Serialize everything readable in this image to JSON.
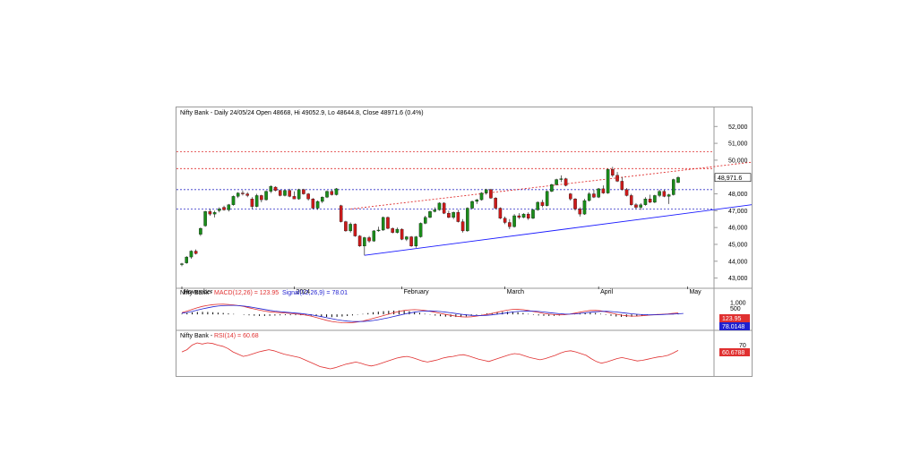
{
  "chart_data": [
    {
      "type": "candlestick",
      "title": "Nifty Bank - Daily 24/05/24 Open 48668, Hi 49052.9, Lo 48644.8, Close 48971.6 (0.4%)",
      "y_ticks": [
        "52,000",
        "51,000",
        "50,000",
        "49,000",
        "48,000",
        "47,000",
        "46,000",
        "45,000",
        "44,000",
        "43,000"
      ],
      "ylim": [
        42500,
        52600
      ],
      "last_price_label": "48,971.6",
      "last_price": 48971.6,
      "x_labels": [
        "November",
        "2024",
        "February",
        "March",
        "April",
        "May"
      ],
      "x_label_index": [
        0,
        24,
        47,
        69,
        89,
        108
      ],
      "horizontal_levels": [
        {
          "value": 50500,
          "color": "#e03030"
        },
        {
          "value": 49500,
          "color": "#e03030"
        },
        {
          "value": 48250,
          "color": "#3030c8"
        },
        {
          "value": 47100,
          "color": "#3030c8"
        }
      ],
      "trendlines": [
        {
          "from": [
            39,
            44350
          ],
          "to": [
            134,
            47800
          ],
          "color": "#1a1aff",
          "style": "solid"
        },
        {
          "from": [
            36,
            47100
          ],
          "to": [
            130,
            50150
          ],
          "color": "#e03030",
          "style": "dashed"
        }
      ],
      "up_color": "#1a8c1a",
      "down_color": "#cc1a1a",
      "candles": [
        [
          43800,
          43900,
          43700,
          43850
        ],
        [
          43900,
          44300,
          43850,
          44250
        ],
        [
          44250,
          44650,
          44150,
          44600
        ],
        [
          44600,
          44700,
          44400,
          44450
        ],
        [
          45600,
          46000,
          45500,
          45950
        ],
        [
          46100,
          47000,
          46050,
          46950
        ],
        [
          46950,
          47100,
          46700,
          46800
        ],
        [
          46800,
          47000,
          46600,
          46900
        ],
        [
          47000,
          47200,
          46900,
          47100
        ],
        [
          47200,
          47300,
          47000,
          47050
        ],
        [
          47050,
          47400,
          46950,
          47350
        ],
        [
          47350,
          47900,
          47300,
          47850
        ],
        [
          47850,
          48100,
          47750,
          48050
        ],
        [
          48050,
          48200,
          47900,
          48000
        ],
        [
          48000,
          48100,
          47800,
          47900
        ],
        [
          47700,
          47800,
          47100,
          47250
        ],
        [
          47250,
          48000,
          47200,
          47900
        ],
        [
          47900,
          47950,
          47500,
          47650
        ],
        [
          47650,
          48200,
          47600,
          48150
        ],
        [
          48150,
          48500,
          48050,
          48450
        ],
        [
          48400,
          48450,
          48150,
          48200
        ],
        [
          48200,
          48250,
          47850,
          47900
        ],
        [
          47900,
          48250,
          47850,
          48200
        ],
        [
          48200,
          48300,
          47800,
          47850
        ],
        [
          47850,
          48150,
          47700,
          47700
        ],
        [
          47700,
          48300,
          47650,
          48250
        ],
        [
          48250,
          48300,
          47950,
          48000
        ],
        [
          48000,
          48050,
          47600,
          47700
        ],
        [
          47700,
          47750,
          47100,
          47150
        ],
        [
          47150,
          47600,
          47050,
          47550
        ],
        [
          47550,
          47850,
          47450,
          47800
        ],
        [
          47800,
          48200,
          47750,
          48150
        ],
        [
          48150,
          48250,
          47900,
          47950
        ],
        [
          47950,
          48350,
          47900,
          48300
        ],
        [
          47300,
          47350,
          46300,
          46350
        ],
        [
          46350,
          46400,
          45750,
          45800
        ],
        [
          45800,
          46300,
          45700,
          46200
        ],
        [
          46200,
          46250,
          45450,
          45500
        ],
        [
          45500,
          45550,
          44850,
          44900
        ],
        [
          44900,
          45450,
          44350,
          45400
        ],
        [
          45400,
          45500,
          45100,
          45200
        ],
        [
          45200,
          45850,
          45150,
          45800
        ],
        [
          45800,
          46050,
          45750,
          45850
        ],
        [
          45850,
          46650,
          45800,
          46600
        ],
        [
          46600,
          46650,
          45900,
          45950
        ],
        [
          45950,
          46000,
          45650,
          45700
        ],
        [
          45700,
          46000,
          45650,
          45900
        ],
        [
          45900,
          45950,
          45250,
          45300
        ],
        [
          45300,
          45500,
          45200,
          45450
        ],
        [
          45450,
          45500,
          44850,
          44900
        ],
        [
          44900,
          45500,
          44800,
          45450
        ],
        [
          45450,
          46300,
          45400,
          46250
        ],
        [
          46250,
          46700,
          46200,
          46600
        ],
        [
          46600,
          47000,
          46550,
          46950
        ],
        [
          46950,
          47200,
          46900,
          47050
        ],
        [
          47050,
          47500,
          47000,
          47450
        ],
        [
          47450,
          47500,
          46800,
          46850
        ],
        [
          46850,
          47000,
          46550,
          46600
        ],
        [
          46600,
          46950,
          46500,
          46900
        ],
        [
          46900,
          47050,
          46300,
          46350
        ],
        [
          46350,
          46500,
          45700,
          45800
        ],
        [
          45800,
          47200,
          45750,
          47150
        ],
        [
          47150,
          47600,
          47100,
          47550
        ],
        [
          47550,
          47700,
          47400,
          47650
        ],
        [
          47650,
          48100,
          47600,
          48050
        ],
        [
          48050,
          48300,
          47950,
          48250
        ],
        [
          48250,
          48300,
          47700,
          47750
        ],
        [
          47750,
          47800,
          47100,
          47150
        ],
        [
          47150,
          47200,
          46500,
          46550
        ],
        [
          46550,
          46650,
          46200,
          46300
        ],
        [
          46300,
          46500,
          45900,
          46050
        ],
        [
          46050,
          46800,
          46000,
          46700
        ],
        [
          46700,
          46850,
          46500,
          46600
        ],
        [
          46600,
          46850,
          46550,
          46800
        ],
        [
          46800,
          46900,
          46450,
          46550
        ],
        [
          46550,
          47100,
          46500,
          47050
        ],
        [
          47050,
          47550,
          47000,
          47500
        ],
        [
          47500,
          47650,
          47200,
          47300
        ],
        [
          47300,
          48200,
          47250,
          48150
        ],
        [
          48150,
          48600,
          48100,
          48550
        ],
        [
          48550,
          48900,
          48500,
          48850
        ],
        [
          48850,
          49100,
          48700,
          48900
        ],
        [
          48900,
          48950,
          48450,
          48500
        ],
        [
          48000,
          48050,
          47600,
          47700
        ],
        [
          47700,
          47750,
          47000,
          47100
        ],
        [
          47100,
          47200,
          46650,
          46800
        ],
        [
          46800,
          47700,
          46750,
          47600
        ],
        [
          47600,
          48100,
          47550,
          48000
        ],
        [
          48000,
          48250,
          47750,
          47800
        ],
        [
          47800,
          48350,
          47750,
          48300
        ],
        [
          48300,
          48500,
          48000,
          48050
        ],
        [
          48050,
          49500,
          48000,
          49450
        ],
        [
          49450,
          49600,
          49000,
          49100
        ],
        [
          49100,
          49300,
          48700,
          48750
        ],
        [
          48750,
          49000,
          48200,
          48250
        ],
        [
          48250,
          48350,
          47850,
          47900
        ],
        [
          47900,
          48000,
          47300,
          47350
        ],
        [
          47350,
          47450,
          47100,
          47200
        ],
        [
          47200,
          47450,
          47050,
          47350
        ],
        [
          47350,
          47800,
          47300,
          47700
        ],
        [
          47700,
          47950,
          47450,
          47500
        ],
        [
          47500,
          47950,
          47450,
          47900
        ],
        [
          47900,
          48250,
          47800,
          48150
        ],
        [
          48150,
          48250,
          47800,
          47850
        ],
        [
          47850,
          48000,
          47400,
          47950
        ],
        [
          47950,
          48900,
          47900,
          48850
        ],
        [
          48668,
          49052.9,
          48644.8,
          48971.6
        ]
      ]
    },
    {
      "type": "line",
      "title": "Nifty Bank - MACD(12,26) = 123.95, Signal(12,26,9) = 78.01",
      "indicator_label": "Nifty Bank - ",
      "macd_label": "MACD(12,26) = 123.95",
      "signal_label": "Signal(12,26,9) = 78.01",
      "y_ticks": [
        "1,000",
        "500"
      ],
      "ylim": [
        -1200,
        1300
      ],
      "value_labels": [
        "123.95",
        "78.0148"
      ],
      "series": [
        {
          "name": "MACD(12,26) = 123.95",
          "color": "#e03030",
          "values": [
            150,
            280,
            420,
            560,
            680,
            760,
            820,
            850,
            860,
            840,
            800,
            740,
            660,
            560,
            460,
            360,
            280,
            220,
            180,
            150,
            120,
            80,
            40,
            0,
            -60,
            -150,
            -260,
            -380,
            -500,
            -600,
            -660,
            -700,
            -710,
            -690,
            -640,
            -560,
            -460,
            -340,
            -220,
            -100,
            20,
            140,
            250,
            330,
            380,
            400,
            380,
            330,
            260,
            180,
            90,
            0,
            -80,
            -150,
            -200,
            -220,
            -200,
            -150,
            -80,
            0,
            80,
            180,
            280,
            360,
            420,
            430,
            400,
            330,
            240,
            160,
            80,
            20,
            -20,
            -40,
            -30,
            20,
            100,
            190,
            270,
            330,
            340,
            300,
            220,
            120,
            20,
            -60,
            -120,
            -150,
            -150,
            -120,
            -80,
            -40,
            -10,
            10,
            40,
            90,
            123.95
          ]
        },
        {
          "name": "Signal(12,26,9) = 78.01",
          "color": "#2020d0",
          "values": [
            100,
            160,
            250,
            360,
            470,
            560,
            640,
            700,
            740,
            760,
            760,
            740,
            700,
            640,
            570,
            490,
            410,
            340,
            280,
            230,
            190,
            150,
            110,
            70,
            20,
            -40,
            -110,
            -190,
            -280,
            -370,
            -450,
            -520,
            -570,
            -600,
            -610,
            -600,
            -570,
            -520,
            -450,
            -370,
            -280,
            -180,
            -80,
            20,
            110,
            190,
            250,
            280,
            290,
            280,
            240,
            190,
            130,
            70,
            10,
            -40,
            -80,
            -100,
            -100,
            -80,
            -40,
            10,
            70,
            140,
            200,
            250,
            280,
            290,
            280,
            250,
            200,
            150,
            100,
            60,
            30,
            20,
            40,
            80,
            130,
            180,
            220,
            250,
            260,
            240,
            200,
            150,
            100,
            50,
            10,
            -20,
            -40,
            -40,
            -30,
            -10,
            10,
            30,
            50,
            78.01
          ]
        }
      ]
    },
    {
      "type": "line",
      "title": "Nifty Bank - RSI(14) = 60.68",
      "indicator_label": "Nifty Bank - ",
      "rsi_label": "RSI(14) = 60.68",
      "y_ticks": [
        "70"
      ],
      "ylim": [
        20,
        82
      ],
      "value_label": "60.6788",
      "series": [
        {
          "name": "RSI(14) = 60.68",
          "color": "#e03030",
          "values": [
            58,
            62,
            70,
            74,
            72,
            74,
            73,
            70,
            68,
            64,
            58,
            54,
            50,
            52,
            55,
            58,
            60,
            62,
            60,
            57,
            54,
            52,
            50,
            48,
            44,
            40,
            36,
            32,
            30,
            28,
            30,
            33,
            36,
            38,
            40,
            38,
            35,
            33,
            35,
            38,
            41,
            44,
            47,
            49,
            50,
            48,
            45,
            42,
            40,
            42,
            44,
            47,
            49,
            50,
            52,
            53,
            51,
            48,
            45,
            43,
            41,
            44,
            47,
            50,
            53,
            55,
            54,
            51,
            48,
            46,
            44,
            46,
            49,
            52,
            56,
            59,
            60,
            58,
            55,
            52,
            46,
            41,
            38,
            40,
            43,
            46,
            48,
            46,
            44,
            42,
            43,
            45,
            47,
            49,
            50,
            52,
            56,
            60.68
          ]
        }
      ]
    }
  ]
}
